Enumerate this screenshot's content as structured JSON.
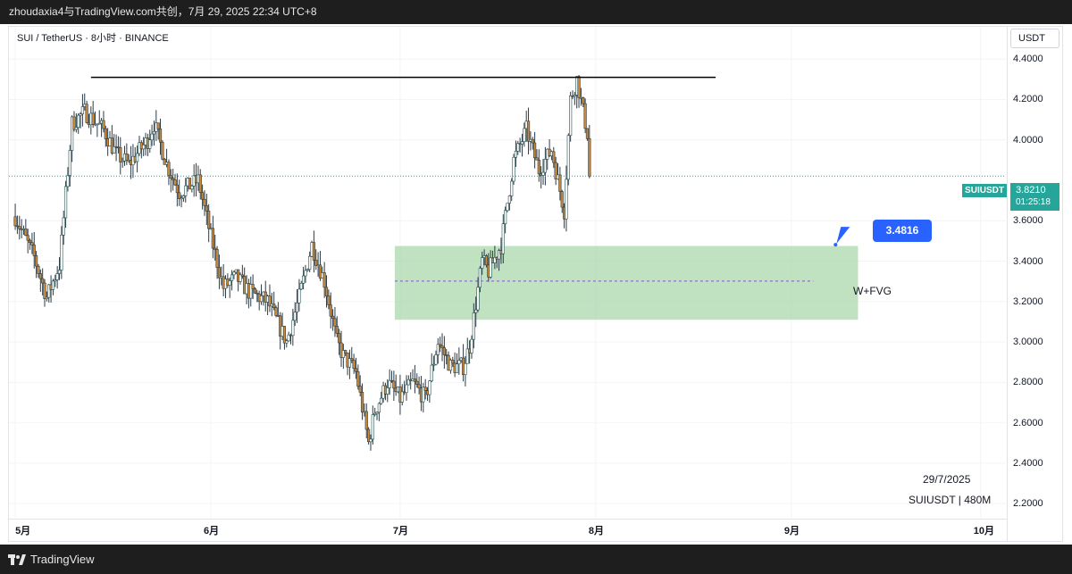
{
  "header": {
    "attribution": "zhoudaxia4与TradingView.com共创，7月 29, 2025 22:34 UTC+8",
    "symbol_line": "SUI / TetherUS · 8小时 · BINANCE",
    "currency": "USDT"
  },
  "footer": {
    "brand": "TradingView",
    "date": "29/7/2025",
    "symbol_interval": "SUIUSDT | 480M"
  },
  "colors": {
    "up": "#ffffff",
    "up_outline": "#1f4f4c",
    "down": "#c98a3a",
    "wick": "#2b3b47",
    "last_price": "#26a69a",
    "zone_fill": "#a5d6a7",
    "zone_mid_line": "#7e57c2",
    "resistance_line": "#000000",
    "callout": "#2962ff"
  },
  "chart_data": {
    "type": "candlestick",
    "symbol": "SUIUSDT",
    "exchange": "BINANCE",
    "interval": "8小时",
    "y_ticks": [
      "4.4000",
      "4.2000",
      "4.0000",
      "3.6000",
      "3.4000",
      "3.2000",
      "3.0000",
      "2.8000",
      "2.6000",
      "2.4000",
      "2.2000"
    ],
    "y_tick_values": [
      4.4,
      4.2,
      4.0,
      3.6,
      3.4,
      3.2,
      3.0,
      2.8,
      2.6,
      2.4,
      2.2
    ],
    "x_ticks": [
      "5月",
      "6月",
      "7月",
      "8月",
      "9月",
      "10月"
    ],
    "x_tick_dates": [
      "2025-05-01",
      "2025-06-01",
      "2025-07-01",
      "2025-08-01",
      "2025-09-01",
      "2025-10-01"
    ],
    "ylim": [
      2.13,
      4.56
    ],
    "xlim": [
      "2025-04-30",
      "2025-10-05"
    ],
    "last_price": {
      "symbol": "SUIUSDT",
      "value": "3.8210",
      "countdown": "01:25:18"
    },
    "resistance_line": {
      "value": 4.31,
      "from": "2025-05-13",
      "to": "2025-08-20"
    },
    "zone": {
      "label": "W+FVG",
      "top": 3.475,
      "bottom": 3.11,
      "from": "2025-07-01",
      "to": "2025-09-11"
    },
    "callout": {
      "label": "3.4816",
      "value": 3.4816,
      "date": "2025-09-08"
    },
    "anchors": [
      [
        "2025-05-01",
        3.62
      ],
      [
        "2025-05-04",
        3.42
      ],
      [
        "2025-05-06",
        3.22
      ],
      [
        "2025-05-08",
        3.38
      ],
      [
        "2025-05-10",
        4.08
      ],
      [
        "2025-05-12",
        4.14
      ],
      [
        "2025-05-15",
        4.05
      ],
      [
        "2025-05-17",
        3.93
      ],
      [
        "2025-05-19",
        3.88
      ],
      [
        "2025-05-22",
        4.0
      ],
      [
        "2025-05-23",
        4.08
      ],
      [
        "2025-05-25",
        3.88
      ],
      [
        "2025-05-27",
        3.74
      ],
      [
        "2025-05-30",
        3.8
      ],
      [
        "2025-06-01",
        3.52
      ],
      [
        "2025-06-03",
        3.27
      ],
      [
        "2025-06-05",
        3.32
      ],
      [
        "2025-06-07",
        3.25
      ],
      [
        "2025-06-10",
        3.2
      ],
      [
        "2025-06-13",
        3.0
      ],
      [
        "2025-06-15",
        3.22
      ],
      [
        "2025-06-17",
        3.48
      ],
      [
        "2025-06-19",
        3.3
      ],
      [
        "2025-06-21",
        3.0
      ],
      [
        "2025-06-22",
        2.93
      ],
      [
        "2025-06-24",
        2.85
      ],
      [
        "2025-06-26",
        2.5
      ],
      [
        "2025-06-27",
        2.66
      ],
      [
        "2025-06-29",
        2.8
      ],
      [
        "2025-07-01",
        2.72
      ],
      [
        "2025-07-03",
        2.8
      ],
      [
        "2025-07-05",
        2.72
      ],
      [
        "2025-07-07",
        3.0
      ],
      [
        "2025-07-09",
        2.88
      ],
      [
        "2025-07-11",
        2.88
      ],
      [
        "2025-07-12",
        2.98
      ],
      [
        "2025-07-14",
        3.4
      ],
      [
        "2025-07-15",
        3.35
      ],
      [
        "2025-07-17",
        3.48
      ],
      [
        "2025-07-19",
        3.9
      ],
      [
        "2025-07-21",
        4.05
      ],
      [
        "2025-07-23",
        3.85
      ],
      [
        "2025-07-25",
        3.95
      ],
      [
        "2025-07-26",
        3.8
      ],
      [
        "2025-07-27",
        3.65
      ],
      [
        "2025-07-28",
        4.2
      ],
      [
        "2025-07-29",
        4.3
      ],
      [
        "2025-07-31",
        3.98
      ],
      [
        "2025-07-31",
        3.821
      ]
    ]
  }
}
